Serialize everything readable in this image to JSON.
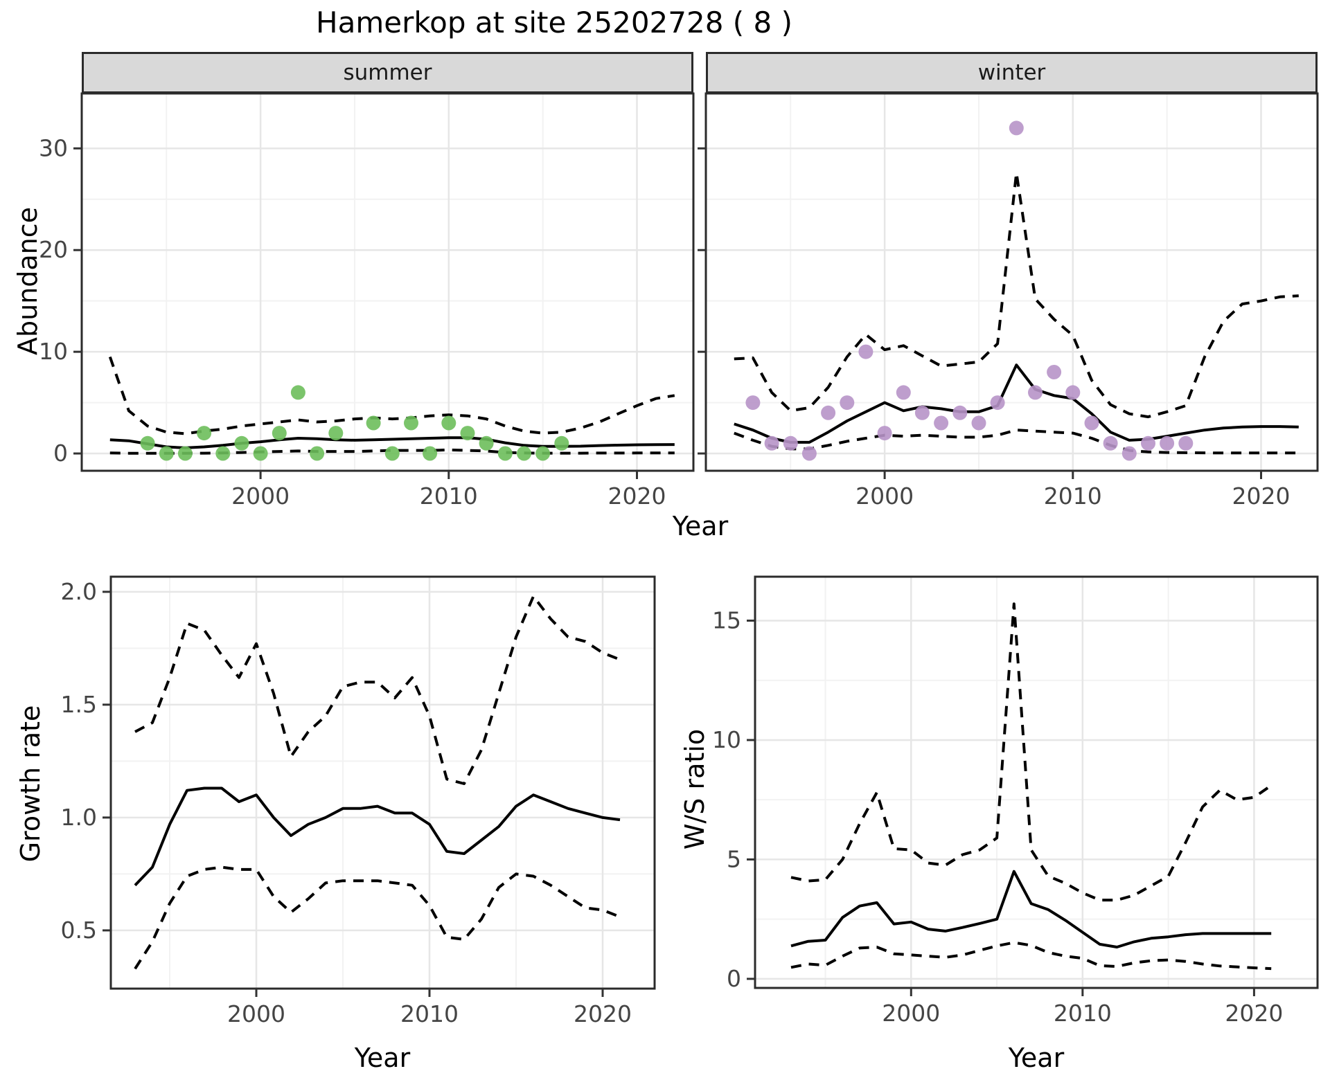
{
  "title": "Hamerkop at site 25202728 ( 8 )",
  "facets": {
    "summer": "summer",
    "winter": "winter"
  },
  "axes": {
    "abundance_label": "Abundance",
    "year_label": "Year",
    "growth_label": "Growth rate",
    "ws_label": "W/S ratio"
  },
  "colors": {
    "summer_points": "#6dbe5b",
    "winter_points": "#b793c8",
    "line": "#000000",
    "grid_major": "#e6e6e6",
    "grid_minor": "#f2f2f2",
    "panel_border": "#2b2b2b",
    "strip_fill": "#d9d9d9",
    "tick_text": "#444444"
  },
  "chart_data": [
    {
      "id": "summer-abundance",
      "type": "line",
      "facet_label": "summer",
      "ylabel": "Abundance",
      "xlabel": "Year",
      "x_range": [
        1990.5,
        2023.0
      ],
      "y_range": [
        -1.7,
        35.4
      ],
      "x_ticks": [
        2000,
        2010,
        2020
      ],
      "x_tick_labels": [
        "2000",
        "2010",
        "2020"
      ],
      "x_minor": [
        1995,
        2005,
        2015
      ],
      "y_ticks": [
        0,
        10,
        20,
        30
      ],
      "y_tick_labels": [
        "0",
        "10",
        "20",
        "30"
      ],
      "y_minor": [
        5,
        15,
        25
      ],
      "show_y_tick_labels": true,
      "points": {
        "x": [
          1994,
          1995,
          1996,
          1997,
          1998,
          1999,
          2000,
          2001,
          2002,
          2003,
          2004,
          2006,
          2007,
          2008,
          2009,
          2010,
          2011,
          2012,
          2013,
          2014,
          2015,
          2016
        ],
        "y": [
          1,
          0,
          0,
          2,
          0,
          1,
          0,
          2,
          6,
          0,
          2,
          3,
          0,
          3,
          0,
          3,
          2,
          1,
          0,
          0,
          0,
          1
        ]
      },
      "series": [
        {
          "name": "median",
          "style": "solid",
          "x": [
            1992,
            1993,
            1994,
            1995,
            1996,
            1997,
            1998,
            1999,
            2000,
            2001,
            2002,
            2003,
            2004,
            2005,
            2006,
            2007,
            2008,
            2009,
            2010,
            2011,
            2012,
            2013,
            2014,
            2015,
            2016,
            2017,
            2018,
            2019,
            2020,
            2021,
            2022
          ],
          "y": [
            1.35,
            1.25,
            0.95,
            0.65,
            0.55,
            0.65,
            0.8,
            1.0,
            1.15,
            1.35,
            1.5,
            1.45,
            1.35,
            1.3,
            1.35,
            1.4,
            1.45,
            1.5,
            1.55,
            1.55,
            1.4,
            1.05,
            0.8,
            0.7,
            0.7,
            0.72,
            0.78,
            0.82,
            0.85,
            0.87,
            0.88
          ]
        },
        {
          "name": "upper_ci",
          "style": "dashed",
          "x": [
            1992,
            1993,
            1994,
            1995,
            1996,
            1997,
            1998,
            1999,
            2000,
            2001,
            2002,
            2003,
            2004,
            2005,
            2006,
            2007,
            2008,
            2009,
            2010,
            2011,
            2012,
            2013,
            2014,
            2015,
            2016,
            2017,
            2018,
            2019,
            2020,
            2021,
            2022
          ],
          "y": [
            9.5,
            4.2,
            2.7,
            2.1,
            1.95,
            2.2,
            2.4,
            2.7,
            2.9,
            3.1,
            3.3,
            3.1,
            3.2,
            3.4,
            3.5,
            3.4,
            3.5,
            3.7,
            3.8,
            3.7,
            3.4,
            2.7,
            2.2,
            2.0,
            2.1,
            2.5,
            3.1,
            3.9,
            4.7,
            5.4,
            5.7
          ]
        },
        {
          "name": "lower_ci",
          "style": "dashed",
          "x": [
            1992,
            1993,
            1994,
            1995,
            1996,
            1997,
            1998,
            1999,
            2000,
            2001,
            2002,
            2003,
            2004,
            2005,
            2006,
            2007,
            2008,
            2009,
            2010,
            2011,
            2012,
            2013,
            2014,
            2015,
            2016,
            2017,
            2018,
            2019,
            2020,
            2021,
            2022
          ],
          "y": [
            0.05,
            0.02,
            0.02,
            0.02,
            0.02,
            0.03,
            0.05,
            0.1,
            0.15,
            0.2,
            0.25,
            0.2,
            0.2,
            0.2,
            0.25,
            0.3,
            0.3,
            0.3,
            0.35,
            0.3,
            0.25,
            0.1,
            0.05,
            0.03,
            0.03,
            0.03,
            0.04,
            0.04,
            0.05,
            0.05,
            0.05
          ]
        }
      ]
    },
    {
      "id": "winter-abundance",
      "type": "line",
      "facet_label": "winter",
      "ylabel": "Abundance",
      "xlabel": "Year",
      "x_range": [
        1990.5,
        2023.0
      ],
      "y_range": [
        -1.7,
        35.4
      ],
      "x_ticks": [
        2000,
        2010,
        2020
      ],
      "x_tick_labels": [
        "2000",
        "2010",
        "2020"
      ],
      "x_minor": [
        1995,
        2005,
        2015
      ],
      "y_ticks": [
        0,
        10,
        20,
        30
      ],
      "y_tick_labels": [
        "0",
        "10",
        "20",
        "30"
      ],
      "y_minor": [
        5,
        15,
        25
      ],
      "show_y_tick_labels": false,
      "points": {
        "x": [
          1993,
          1994,
          1995,
          1996,
          1997,
          1998,
          1999,
          2000,
          2001,
          2002,
          2003,
          2004,
          2005,
          2006,
          2007,
          2008,
          2009,
          2010,
          2011,
          2012,
          2013,
          2014,
          2015,
          2016
        ],
        "y": [
          5,
          1,
          1,
          0,
          4,
          5,
          10,
          2,
          6,
          4,
          3,
          4,
          3,
          5,
          32,
          6,
          8,
          6,
          3,
          1,
          0,
          1,
          1,
          1
        ]
      },
      "series": [
        {
          "name": "median",
          "style": "solid",
          "x": [
            1992,
            1993,
            1994,
            1995,
            1996,
            1997,
            1998,
            1999,
            2000,
            2001,
            2002,
            2003,
            2004,
            2005,
            2006,
            2007,
            2008,
            2009,
            2010,
            2011,
            2012,
            2013,
            2014,
            2015,
            2016,
            2017,
            2018,
            2019,
            2020,
            2021,
            2022
          ],
          "y": [
            2.9,
            2.3,
            1.5,
            1.1,
            1.1,
            2.1,
            3.2,
            4.1,
            5.0,
            4.2,
            4.6,
            4.4,
            4.1,
            4.1,
            4.7,
            8.7,
            6.3,
            5.7,
            5.4,
            3.9,
            2.1,
            1.3,
            1.4,
            1.7,
            2.0,
            2.3,
            2.5,
            2.6,
            2.65,
            2.65,
            2.6
          ]
        },
        {
          "name": "upper_ci",
          "style": "dashed",
          "x": [
            1992,
            1993,
            1994,
            1995,
            1996,
            1997,
            1998,
            1999,
            2000,
            2001,
            2002,
            2003,
            2004,
            2005,
            2006,
            2007,
            2008,
            2009,
            2010,
            2011,
            2012,
            2013,
            2014,
            2015,
            2016,
            2017,
            2018,
            2019,
            2020,
            2021,
            2022
          ],
          "y": [
            9.3,
            9.4,
            6.0,
            4.2,
            4.5,
            6.5,
            9.5,
            11.7,
            10.2,
            10.6,
            9.6,
            8.6,
            8.8,
            9.0,
            10.8,
            27.6,
            15.2,
            13.2,
            11.6,
            7.2,
            4.8,
            3.9,
            3.6,
            4.1,
            4.7,
            9.5,
            13.0,
            14.7,
            15.0,
            15.4,
            15.5
          ]
        },
        {
          "name": "lower_ci",
          "style": "dashed",
          "x": [
            1992,
            1993,
            1994,
            1995,
            1996,
            1997,
            1998,
            1999,
            2000,
            2001,
            2002,
            2003,
            2004,
            2005,
            2006,
            2007,
            2008,
            2009,
            2010,
            2011,
            2012,
            2013,
            2014,
            2015,
            2016,
            2017,
            2018,
            2019,
            2020,
            2021,
            2022
          ],
          "y": [
            2.0,
            1.3,
            0.7,
            0.45,
            0.45,
            0.8,
            1.2,
            1.5,
            1.8,
            1.7,
            1.8,
            1.7,
            1.6,
            1.6,
            1.8,
            2.3,
            2.2,
            2.1,
            2.0,
            1.5,
            0.8,
            0.3,
            0.15,
            0.1,
            0.08,
            0.06,
            0.05,
            0.05,
            0.05,
            0.05,
            0.05
          ]
        }
      ]
    },
    {
      "id": "growth-rate",
      "type": "line",
      "facet_label": "",
      "ylabel": "Growth rate",
      "xlabel": "Year",
      "x_range": [
        1991.6,
        2023.0
      ],
      "y_range": [
        0.242,
        2.067
      ],
      "x_ticks": [
        2000,
        2010,
        2020
      ],
      "x_tick_labels": [
        "2000",
        "2010",
        "2020"
      ],
      "x_minor": [
        1995,
        2005,
        2015
      ],
      "y_ticks": [
        0.5,
        1.0,
        1.5,
        2.0
      ],
      "y_tick_labels": [
        "0.5",
        "1.0",
        "1.5",
        "2.0"
      ],
      "y_minor": [
        0.75,
        1.25,
        1.75
      ],
      "show_y_tick_labels": true,
      "points": {
        "x": [],
        "y": []
      },
      "series": [
        {
          "name": "median",
          "style": "solid",
          "x": [
            1993,
            1994,
            1995,
            1996,
            1997,
            1998,
            1999,
            2000,
            2001,
            2002,
            2003,
            2004,
            2005,
            2006,
            2007,
            2008,
            2009,
            2010,
            2011,
            2012,
            2013,
            2014,
            2015,
            2016,
            2017,
            2018,
            2019,
            2020,
            2021
          ],
          "y": [
            0.7,
            0.78,
            0.97,
            1.12,
            1.13,
            1.13,
            1.07,
            1.1,
            1.0,
            0.92,
            0.97,
            1.0,
            1.04,
            1.04,
            1.05,
            1.02,
            1.02,
            0.97,
            0.85,
            0.84,
            0.9,
            0.96,
            1.05,
            1.1,
            1.07,
            1.04,
            1.02,
            1.0,
            0.99
          ]
        },
        {
          "name": "upper_ci",
          "style": "dashed",
          "x": [
            1993,
            1994,
            1995,
            1996,
            1997,
            1998,
            1999,
            2000,
            2001,
            2002,
            2003,
            2004,
            2005,
            2006,
            2007,
            2008,
            2009,
            2010,
            2011,
            2012,
            2013,
            2014,
            2015,
            2016,
            2017,
            2018,
            2019,
            2020,
            2021
          ],
          "y": [
            1.38,
            1.42,
            1.62,
            1.86,
            1.83,
            1.72,
            1.62,
            1.77,
            1.55,
            1.27,
            1.38,
            1.45,
            1.58,
            1.6,
            1.6,
            1.53,
            1.62,
            1.45,
            1.17,
            1.15,
            1.3,
            1.55,
            1.8,
            1.98,
            1.88,
            1.8,
            1.78,
            1.73,
            1.7
          ]
        },
        {
          "name": "lower_ci",
          "style": "dashed",
          "x": [
            1993,
            1994,
            1995,
            1996,
            1997,
            1998,
            1999,
            2000,
            2001,
            2002,
            2003,
            2004,
            2005,
            2006,
            2007,
            2008,
            2009,
            2010,
            2011,
            2012,
            2013,
            2014,
            2015,
            2016,
            2017,
            2018,
            2019,
            2020,
            2021
          ],
          "y": [
            0.33,
            0.45,
            0.62,
            0.74,
            0.77,
            0.78,
            0.77,
            0.77,
            0.65,
            0.58,
            0.64,
            0.71,
            0.72,
            0.72,
            0.72,
            0.71,
            0.7,
            0.61,
            0.47,
            0.46,
            0.55,
            0.69,
            0.75,
            0.74,
            0.7,
            0.65,
            0.6,
            0.59,
            0.56
          ]
        }
      ]
    },
    {
      "id": "ws-ratio",
      "type": "line",
      "facet_label": "",
      "ylabel": "W/S ratio",
      "xlabel": "Year",
      "x_range": [
        1990.9,
        2023.7
      ],
      "y_range": [
        -0.38,
        16.84
      ],
      "x_ticks": [
        2000,
        2010,
        2020
      ],
      "x_tick_labels": [
        "2000",
        "2010",
        "2020"
      ],
      "x_minor": [
        1995,
        2005,
        2015
      ],
      "y_ticks": [
        0,
        5,
        10,
        15
      ],
      "y_tick_labels": [
        "0",
        "5",
        "10",
        "15"
      ],
      "y_minor": [
        2.5,
        7.5,
        12.5
      ],
      "show_y_tick_labels": true,
      "points": {
        "x": [],
        "y": []
      },
      "series": [
        {
          "name": "median",
          "style": "solid",
          "x": [
            1993,
            1994,
            1995,
            1996,
            1997,
            1998,
            1999,
            2000,
            2001,
            2002,
            2003,
            2004,
            2005,
            2006,
            2007,
            2008,
            2009,
            2010,
            2011,
            2012,
            2013,
            2014,
            2015,
            2016,
            2017,
            2018,
            2019,
            2020,
            2021
          ],
          "y": [
            1.38,
            1.57,
            1.62,
            2.57,
            3.05,
            3.19,
            2.3,
            2.38,
            2.08,
            2.0,
            2.15,
            2.32,
            2.5,
            4.5,
            3.15,
            2.9,
            2.45,
            1.95,
            1.45,
            1.33,
            1.55,
            1.7,
            1.76,
            1.85,
            1.9,
            1.9,
            1.9,
            1.9,
            1.9
          ]
        },
        {
          "name": "upper_ci",
          "style": "dashed",
          "x": [
            1993,
            1994,
            1995,
            1996,
            1997,
            1998,
            1999,
            2000,
            2001,
            2002,
            2003,
            2004,
            2005,
            2006,
            2007,
            2008,
            2009,
            2010,
            2011,
            2012,
            2013,
            2014,
            2015,
            2016,
            2017,
            2018,
            2019,
            2020,
            2021
          ],
          "y": [
            4.25,
            4.1,
            4.15,
            5.0,
            6.5,
            7.8,
            5.45,
            5.4,
            4.85,
            4.76,
            5.2,
            5.4,
            5.9,
            15.7,
            5.4,
            4.3,
            4.0,
            3.6,
            3.3,
            3.3,
            3.5,
            3.9,
            4.3,
            5.7,
            7.2,
            7.9,
            7.5,
            7.6,
            8.1
          ]
        },
        {
          "name": "lower_ci",
          "style": "dashed",
          "x": [
            1993,
            1994,
            1995,
            1996,
            1997,
            1998,
            1999,
            2000,
            2001,
            2002,
            2003,
            2004,
            2005,
            2006,
            2007,
            2008,
            2009,
            2010,
            2011,
            2012,
            2013,
            2014,
            2015,
            2016,
            2017,
            2018,
            2019,
            2020,
            2021
          ],
          "y": [
            0.48,
            0.62,
            0.57,
            0.95,
            1.29,
            1.33,
            1.05,
            1.0,
            0.95,
            0.9,
            1.0,
            1.19,
            1.38,
            1.52,
            1.4,
            1.1,
            0.95,
            0.86,
            0.55,
            0.52,
            0.67,
            0.76,
            0.79,
            0.73,
            0.62,
            0.54,
            0.5,
            0.46,
            0.43
          ]
        }
      ]
    }
  ]
}
